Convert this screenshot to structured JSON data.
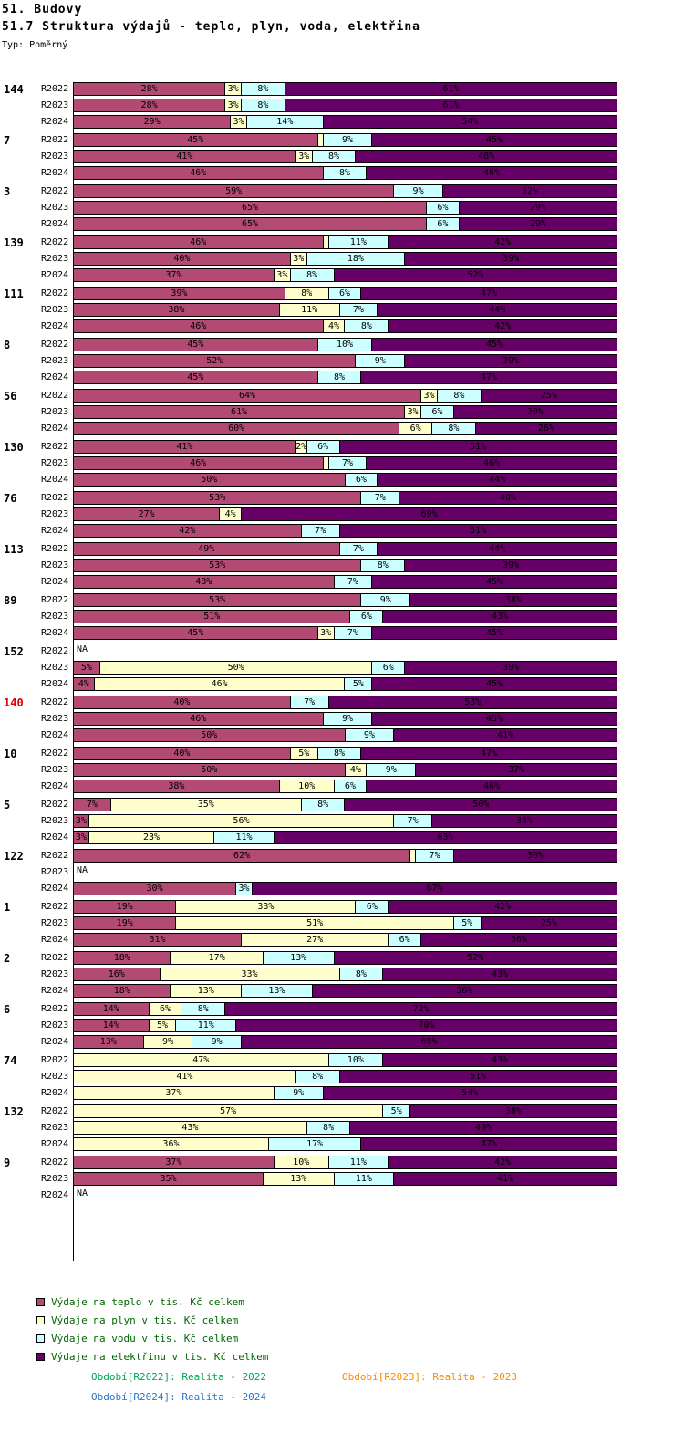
{
  "header": {
    "title": "51. Budovy",
    "subtitle": "51.7 Struktura výdajů - teplo, plyn, voda, elektřina",
    "type_label": "Typ: Poměrný"
  },
  "chart_data": {
    "type": "bar",
    "variant": "horizontal-stacked-percent",
    "title": "51.7 Struktura výdajů - teplo, plyn, voda, elektřina",
    "x_range_percent": [
      0,
      100
    ],
    "grid": false,
    "legend_position": "bottom-left",
    "segment_keys": [
      "teplo",
      "plyn",
      "voda",
      "elektrina"
    ],
    "colors": {
      "teplo": "#B34A73",
      "plyn": "#FFFFCC",
      "voda": "#CCFFFF",
      "elektrina": "#660066"
    },
    "id_highlight_color": "#E00000",
    "na_label": "NA",
    "min_label_value": 2,
    "groups": [
      {
        "id": "144",
        "highlight": false,
        "rows": [
          {
            "period": "R2022",
            "values": {
              "teplo": 28,
              "plyn": 3,
              "voda": 8,
              "elektrina": 61
            }
          },
          {
            "period": "R2023",
            "values": {
              "teplo": 28,
              "plyn": 3,
              "voda": 8,
              "elektrina": 61
            }
          },
          {
            "period": "R2024",
            "values": {
              "teplo": 29,
              "plyn": 3,
              "voda": 14,
              "elektrina": 54
            }
          }
        ]
      },
      {
        "id": "7",
        "highlight": false,
        "rows": [
          {
            "period": "R2022",
            "values": {
              "teplo": 45,
              "plyn": 1,
              "voda": 9,
              "elektrina": 45
            }
          },
          {
            "period": "R2023",
            "values": {
              "teplo": 41,
              "plyn": 3,
              "voda": 8,
              "elektrina": 48
            }
          },
          {
            "period": "R2024",
            "values": {
              "teplo": 46,
              "voda": 8,
              "elektrina": 46
            }
          }
        ]
      },
      {
        "id": "3",
        "highlight": false,
        "rows": [
          {
            "period": "R2022",
            "values": {
              "teplo": 59,
              "voda": 9,
              "elektrina": 32
            }
          },
          {
            "period": "R2023",
            "values": {
              "teplo": 65,
              "voda": 6,
              "elektrina": 29
            }
          },
          {
            "period": "R2024",
            "values": {
              "teplo": 65,
              "voda": 6,
              "elektrina": 29
            }
          }
        ]
      },
      {
        "id": "139",
        "highlight": false,
        "rows": [
          {
            "period": "R2022",
            "values": {
              "teplo": 46,
              "plyn": 1,
              "voda": 11,
              "elektrina": 42
            }
          },
          {
            "period": "R2023",
            "values": {
              "teplo": 40,
              "plyn": 3,
              "voda": 18,
              "elektrina": 39
            }
          },
          {
            "period": "R2024",
            "values": {
              "teplo": 37,
              "plyn": 3,
              "voda": 8,
              "elektrina": 52
            }
          }
        ]
      },
      {
        "id": "111",
        "highlight": false,
        "rows": [
          {
            "period": "R2022",
            "values": {
              "teplo": 39,
              "plyn": 8,
              "voda": 6,
              "elektrina": 47
            }
          },
          {
            "period": "R2023",
            "values": {
              "teplo": 38,
              "plyn": 11,
              "voda": 7,
              "elektrina": 44
            }
          },
          {
            "period": "R2024",
            "values": {
              "teplo": 46,
              "plyn": 4,
              "voda": 8,
              "elektrina": 42
            }
          }
        ]
      },
      {
        "id": "8",
        "highlight": false,
        "rows": [
          {
            "period": "R2022",
            "values": {
              "teplo": 45,
              "voda": 10,
              "elektrina": 45
            }
          },
          {
            "period": "R2023",
            "values": {
              "teplo": 52,
              "voda": 9,
              "elektrina": 39
            }
          },
          {
            "period": "R2024",
            "values": {
              "teplo": 45,
              "voda": 8,
              "elektrina": 47
            }
          }
        ]
      },
      {
        "id": "56",
        "highlight": false,
        "rows": [
          {
            "period": "R2022",
            "values": {
              "teplo": 64,
              "plyn": 3,
              "voda": 8,
              "elektrina": 25
            }
          },
          {
            "period": "R2023",
            "values": {
              "teplo": 61,
              "plyn": 3,
              "voda": 6,
              "elektrina": 30
            }
          },
          {
            "period": "R2024",
            "values": {
              "teplo": 60,
              "plyn": 6,
              "voda": 8,
              "elektrina": 26
            }
          }
        ]
      },
      {
        "id": "130",
        "highlight": false,
        "rows": [
          {
            "period": "R2022",
            "values": {
              "teplo": 41,
              "plyn": 2,
              "voda": 6,
              "elektrina": 51
            }
          },
          {
            "period": "R2023",
            "values": {
              "teplo": 46,
              "plyn": 1,
              "voda": 7,
              "elektrina": 46
            }
          },
          {
            "period": "R2024",
            "values": {
              "teplo": 50,
              "voda": 6,
              "elektrina": 44
            }
          }
        ]
      },
      {
        "id": "76",
        "highlight": false,
        "rows": [
          {
            "period": "R2022",
            "values": {
              "teplo": 53,
              "voda": 7,
              "elektrina": 40
            }
          },
          {
            "period": "R2023",
            "values": {
              "teplo": 27,
              "plyn": 4,
              "elektrina": 69
            }
          },
          {
            "period": "R2024",
            "values": {
              "teplo": 42,
              "voda": 7,
              "elektrina": 51
            }
          }
        ]
      },
      {
        "id": "113",
        "highlight": false,
        "rows": [
          {
            "period": "R2022",
            "values": {
              "teplo": 49,
              "voda": 7,
              "elektrina": 44
            }
          },
          {
            "period": "R2023",
            "values": {
              "teplo": 53,
              "voda": 8,
              "elektrina": 39
            }
          },
          {
            "period": "R2024",
            "values": {
              "teplo": 48,
              "voda": 7,
              "elektrina": 45
            }
          }
        ]
      },
      {
        "id": "89",
        "highlight": false,
        "rows": [
          {
            "period": "R2022",
            "values": {
              "teplo": 53,
              "voda": 9,
              "elektrina": 38
            }
          },
          {
            "period": "R2023",
            "values": {
              "teplo": 51,
              "voda": 6,
              "elektrina": 43
            }
          },
          {
            "period": "R2024",
            "values": {
              "teplo": 45,
              "plyn": 3,
              "voda": 7,
              "elektrina": 45
            }
          }
        ]
      },
      {
        "id": "152",
        "highlight": false,
        "rows": [
          {
            "period": "R2022",
            "na": true
          },
          {
            "period": "R2023",
            "values": {
              "teplo": 5,
              "plyn": 50,
              "voda": 6,
              "elektrina": 39
            }
          },
          {
            "period": "R2024",
            "values": {
              "teplo": 4,
              "plyn": 46,
              "voda": 5,
              "elektrina": 45
            }
          }
        ]
      },
      {
        "id": "140",
        "highlight": true,
        "rows": [
          {
            "period": "R2022",
            "values": {
              "teplo": 40,
              "voda": 7,
              "elektrina": 53
            }
          },
          {
            "period": "R2023",
            "values": {
              "teplo": 46,
              "voda": 9,
              "elektrina": 45
            }
          },
          {
            "period": "R2024",
            "values": {
              "teplo": 50,
              "voda": 9,
              "elektrina": 41
            }
          }
        ]
      },
      {
        "id": "10",
        "highlight": false,
        "rows": [
          {
            "period": "R2022",
            "values": {
              "teplo": 40,
              "plyn": 5,
              "voda": 8,
              "elektrina": 47
            }
          },
          {
            "period": "R2023",
            "values": {
              "teplo": 50,
              "plyn": 4,
              "voda": 9,
              "elektrina": 37
            }
          },
          {
            "period": "R2024",
            "values": {
              "teplo": 38,
              "plyn": 10,
              "voda": 6,
              "elektrina": 46
            }
          }
        ]
      },
      {
        "id": "5",
        "highlight": false,
        "rows": [
          {
            "period": "R2022",
            "values": {
              "teplo": 7,
              "plyn": 35,
              "voda": 8,
              "elektrina": 50
            }
          },
          {
            "period": "R2023",
            "values": {
              "teplo": 3,
              "plyn": 56,
              "voda": 7,
              "elektrina": 34
            }
          },
          {
            "period": "R2024",
            "values": {
              "teplo": 3,
              "plyn": 23,
              "voda": 11,
              "elektrina": 63
            }
          }
        ]
      },
      {
        "id": "122",
        "highlight": false,
        "rows": [
          {
            "period": "R2022",
            "values": {
              "teplo": 62,
              "plyn": 1,
              "voda": 7,
              "elektrina": 30
            }
          },
          {
            "period": "R2023",
            "na": true
          },
          {
            "period": "R2024",
            "values": {
              "teplo": 30,
              "voda": 3,
              "elektrina": 67
            }
          }
        ]
      },
      {
        "id": "1",
        "highlight": false,
        "rows": [
          {
            "period": "R2022",
            "values": {
              "teplo": 19,
              "plyn": 33,
              "voda": 6,
              "elektrina": 42
            }
          },
          {
            "period": "R2023",
            "values": {
              "teplo": 19,
              "plyn": 51,
              "voda": 5,
              "elektrina": 25
            }
          },
          {
            "period": "R2024",
            "values": {
              "teplo": 31,
              "plyn": 27,
              "voda": 6,
              "elektrina": 36
            }
          }
        ]
      },
      {
        "id": "2",
        "highlight": false,
        "rows": [
          {
            "period": "R2022",
            "values": {
              "teplo": 18,
              "plyn": 17,
              "voda": 13,
              "elektrina": 52
            }
          },
          {
            "period": "R2023",
            "values": {
              "teplo": 16,
              "plyn": 33,
              "voda": 8,
              "elektrina": 43
            }
          },
          {
            "period": "R2024",
            "values": {
              "teplo": 18,
              "plyn": 13,
              "voda": 13,
              "elektrina": 56
            }
          }
        ]
      },
      {
        "id": "6",
        "highlight": false,
        "rows": [
          {
            "period": "R2022",
            "values": {
              "teplo": 14,
              "plyn": 6,
              "voda": 8,
              "elektrina": 72
            }
          },
          {
            "period": "R2023",
            "values": {
              "teplo": 14,
              "plyn": 5,
              "voda": 11,
              "elektrina": 70
            }
          },
          {
            "period": "R2024",
            "values": {
              "teplo": 13,
              "plyn": 9,
              "voda": 9,
              "elektrina": 69
            }
          }
        ]
      },
      {
        "id": "74",
        "highlight": false,
        "rows": [
          {
            "period": "R2022",
            "values": {
              "plyn": 47,
              "voda": 10,
              "elektrina": 43
            }
          },
          {
            "period": "R2023",
            "values": {
              "plyn": 41,
              "voda": 8,
              "elektrina": 51
            }
          },
          {
            "period": "R2024",
            "values": {
              "plyn": 37,
              "voda": 9,
              "elektrina": 54
            }
          }
        ]
      },
      {
        "id": "132",
        "highlight": false,
        "rows": [
          {
            "period": "R2022",
            "values": {
              "plyn": 57,
              "voda": 5,
              "elektrina": 38
            }
          },
          {
            "period": "R2023",
            "values": {
              "plyn": 43,
              "voda": 8,
              "elektrina": 49
            }
          },
          {
            "period": "R2024",
            "values": {
              "plyn": 36,
              "voda": 17,
              "elektrina": 47
            }
          }
        ]
      },
      {
        "id": "9",
        "highlight": false,
        "rows": [
          {
            "period": "R2022",
            "values": {
              "teplo": 37,
              "plyn": 10,
              "voda": 11,
              "elektrina": 42
            }
          },
          {
            "period": "R2023",
            "values": {
              "teplo": 35,
              "plyn": 13,
              "voda": 11,
              "elektrina": 41
            }
          },
          {
            "period": "R2024",
            "na": true
          }
        ]
      }
    ]
  },
  "legend": {
    "text_color": "#006600",
    "items": [
      {
        "key": "teplo",
        "label": "Výdaje na teplo v tis. Kč celkem"
      },
      {
        "key": "plyn",
        "label": "Výdaje na plyn v tis. Kč celkem"
      },
      {
        "key": "voda",
        "label": "Výdaje na vodu v tis. Kč celkem"
      },
      {
        "key": "elektrina",
        "label": "Výdaje na elektřinu v tis. Kč celkem"
      }
    ]
  },
  "footer": {
    "r2022": {
      "text": "Období[R2022]: Realita - 2022",
      "color": "#00A651"
    },
    "r2023": {
      "text": "Období[R2023]: Realita - 2023",
      "color": "#FF8A00"
    },
    "r2024": {
      "text": "Období[R2024]: Realita - 2024",
      "color": "#2E75C8"
    }
  }
}
